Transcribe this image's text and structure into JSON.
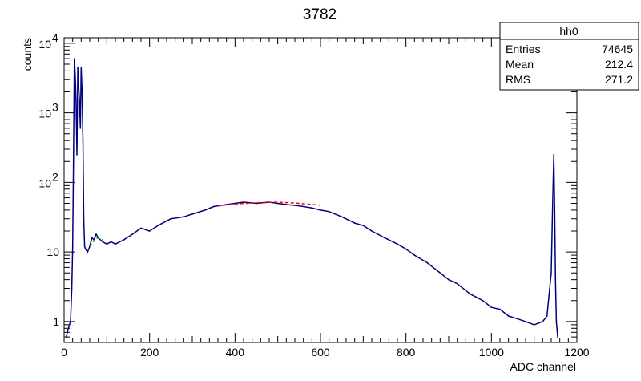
{
  "chart_data": {
    "type": "line",
    "title": "3782",
    "xlabel": "ADC channel",
    "ylabel": "counts",
    "xlim": [
      0,
      1200
    ],
    "ylim": [
      0.5,
      12000
    ],
    "yscale": "log",
    "x_ticks": [
      0,
      200,
      400,
      600,
      800,
      1000,
      1200
    ],
    "y_ticks": [
      {
        "value": 1,
        "label": "1"
      },
      {
        "value": 10,
        "label": "10"
      },
      {
        "value": 100,
        "label": "10",
        "exp": "2"
      },
      {
        "value": 1000,
        "label": "10",
        "exp": "3"
      },
      {
        "value": 10000,
        "label": "10",
        "exp": "4"
      }
    ],
    "grid": false,
    "series": [
      {
        "color": "#000080",
        "x": [
          5,
          10,
          15,
          18,
          20,
          22,
          24,
          26,
          28,
          30,
          32,
          34,
          36,
          38,
          40,
          42,
          44,
          46,
          48,
          50,
          55,
          60,
          65,
          70,
          75,
          80,
          90,
          100,
          110,
          120,
          140,
          160,
          180,
          200,
          220,
          250,
          280,
          300,
          330,
          350,
          380,
          400,
          420,
          450,
          480,
          500,
          520,
          550,
          580,
          600,
          620,
          650,
          680,
          700,
          720,
          750,
          780,
          800,
          820,
          850,
          880,
          900,
          920,
          950,
          980,
          1000,
          1020,
          1040,
          1060,
          1080,
          1100,
          1120,
          1130,
          1140,
          1143,
          1146,
          1148,
          1150,
          1152,
          1155
        ],
        "y": [
          0.6,
          0.8,
          1,
          3,
          12,
          200,
          6000,
          3500,
          1500,
          250,
          4500,
          2500,
          1500,
          600,
          4500,
          2000,
          400,
          30,
          12,
          11,
          10,
          12,
          16,
          15,
          18,
          16,
          14,
          13,
          14,
          13,
          15,
          18,
          22,
          20,
          24,
          30,
          32,
          35,
          40,
          45,
          48,
          50,
          52,
          50,
          52,
          50,
          48,
          46,
          43,
          40,
          38,
          32,
          26,
          24,
          20,
          16,
          13,
          11,
          9,
          7,
          5,
          4,
          3.5,
          2.5,
          2,
          1.6,
          1.5,
          1.2,
          1.1,
          1.0,
          0.9,
          1.0,
          1.2,
          5,
          40,
          250,
          40,
          4,
          1,
          0.6
        ]
      }
    ],
    "fits": [
      {
        "color": "#ff0000",
        "x": [
          360,
          400,
          450,
          500,
          550,
          600
        ],
        "y": [
          46,
          49,
          51,
          52,
          50,
          47
        ]
      },
      {
        "color": "#00aa00",
        "x": [
          60,
          75,
          90
        ],
        "y": [
          12,
          16,
          15
        ]
      }
    ],
    "stats_box": {
      "name": "hh0",
      "rows": [
        {
          "label": "Entries",
          "value": "74645"
        },
        {
          "label": "Mean",
          "value": "212.4"
        },
        {
          "label": "RMS",
          "value": "271.2"
        }
      ]
    }
  }
}
